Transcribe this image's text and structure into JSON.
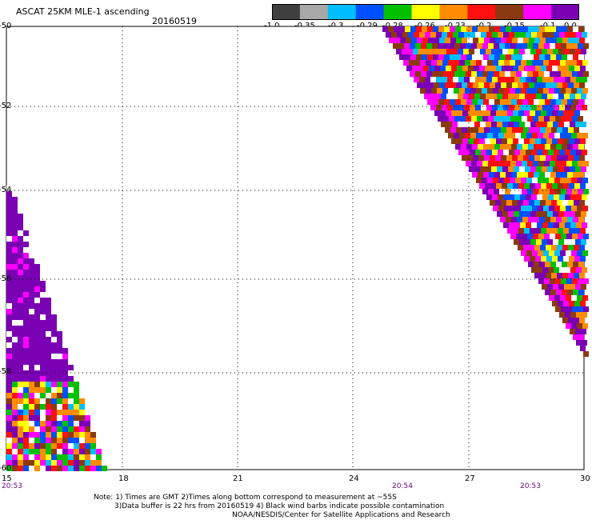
{
  "header": {
    "title": "ASCAT 25KM MLE-1 ascending",
    "date": "20160519"
  },
  "colorbar": {
    "colors": [
      "#404040",
      "#a8a8a8",
      "#00bfff",
      "#0050ff",
      "#00c000",
      "#ffff00",
      "#ff8c00",
      "#ff1010",
      "#8b3a10",
      "#ff00ff",
      "#7a00b4"
    ],
    "labels": [
      "-1.0",
      "-0.35",
      "-0.3",
      "-0.29",
      "-0.28",
      "-0.26",
      "-0.23",
      "-0.2",
      "-0.15",
      "-0.1",
      "0.0"
    ]
  },
  "axes": {
    "x_ticks": [
      "15",
      "18",
      "21",
      "24",
      "27",
      "30"
    ],
    "y_ticks": [
      "-50",
      "-52",
      "-54",
      "-56",
      "-58",
      "-60"
    ]
  },
  "times": [
    "20:53",
    "20:54",
    "20:53"
  ],
  "footnote": {
    "line1": "Note: 1) Times are GMT 2)Times along bottom correspond to measurement at ~55S",
    "line2": "3)Data buffer is 22 hrs from 20160519 4) Black wind barbs indicate possible contamination",
    "line3": "NOAA/NESDIS/Center for Satellite Applications and Research"
  },
  "map_data": {
    "lon_range": [
      15,
      30
    ],
    "lat_range": [
      -60,
      -50
    ],
    "swaths": [
      {
        "name": "east_swath",
        "dominant": "mixed"
      },
      {
        "name": "west_swath",
        "dominant": "purple"
      }
    ]
  }
}
